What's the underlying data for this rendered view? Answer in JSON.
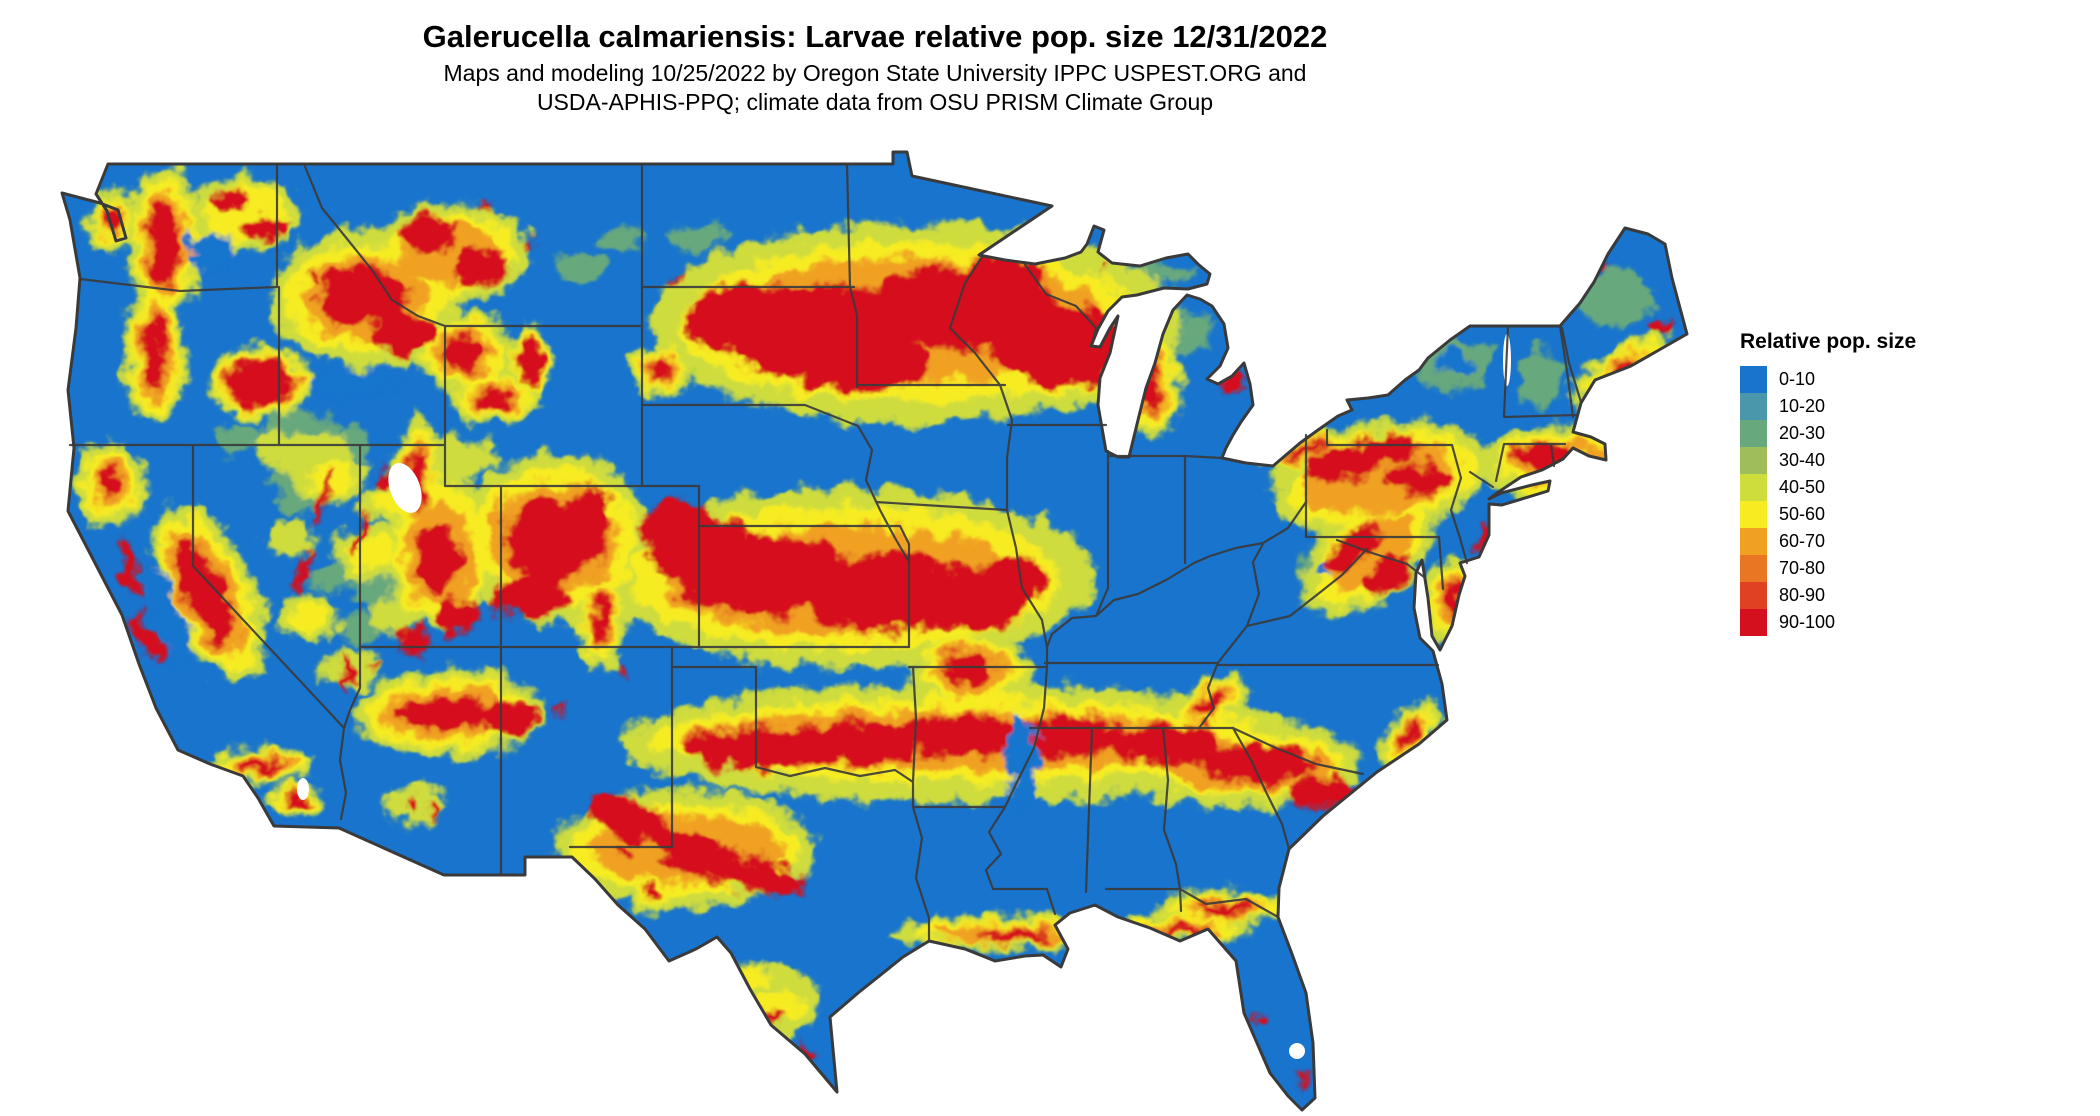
{
  "title": "Galerucella calmariensis: Larvae relative pop. size 12/31/2022",
  "subtitle": {
    "line1": "Maps and modeling 10/25/2022 by Oregon State University IPPC USPEST.ORG and",
    "line2": "USDA-APHIS-PPQ; climate data from OSU PRISM Climate Group"
  },
  "legend": {
    "title": "Relative pop. size",
    "classes": [
      {
        "label": "0-10",
        "color": "#1874CD"
      },
      {
        "label": "10-20",
        "color": "#4A96AB"
      },
      {
        "label": "20-30",
        "color": "#68A87D"
      },
      {
        "label": "30-40",
        "color": "#9FBE5B"
      },
      {
        "label": "40-50",
        "color": "#CEDC3C"
      },
      {
        "label": "50-60",
        "color": "#F7EC21"
      },
      {
        "label": "60-70",
        "color": "#F0A122"
      },
      {
        "label": "70-80",
        "color": "#E87623"
      },
      {
        "label": "80-90",
        "color": "#E04122"
      },
      {
        "label": "90-100",
        "color": "#D5101E"
      }
    ]
  },
  "map": {
    "base_color": "#1874CD",
    "state_border_color": "#3A3A3A",
    "background_color": "#FFFFFF"
  }
}
